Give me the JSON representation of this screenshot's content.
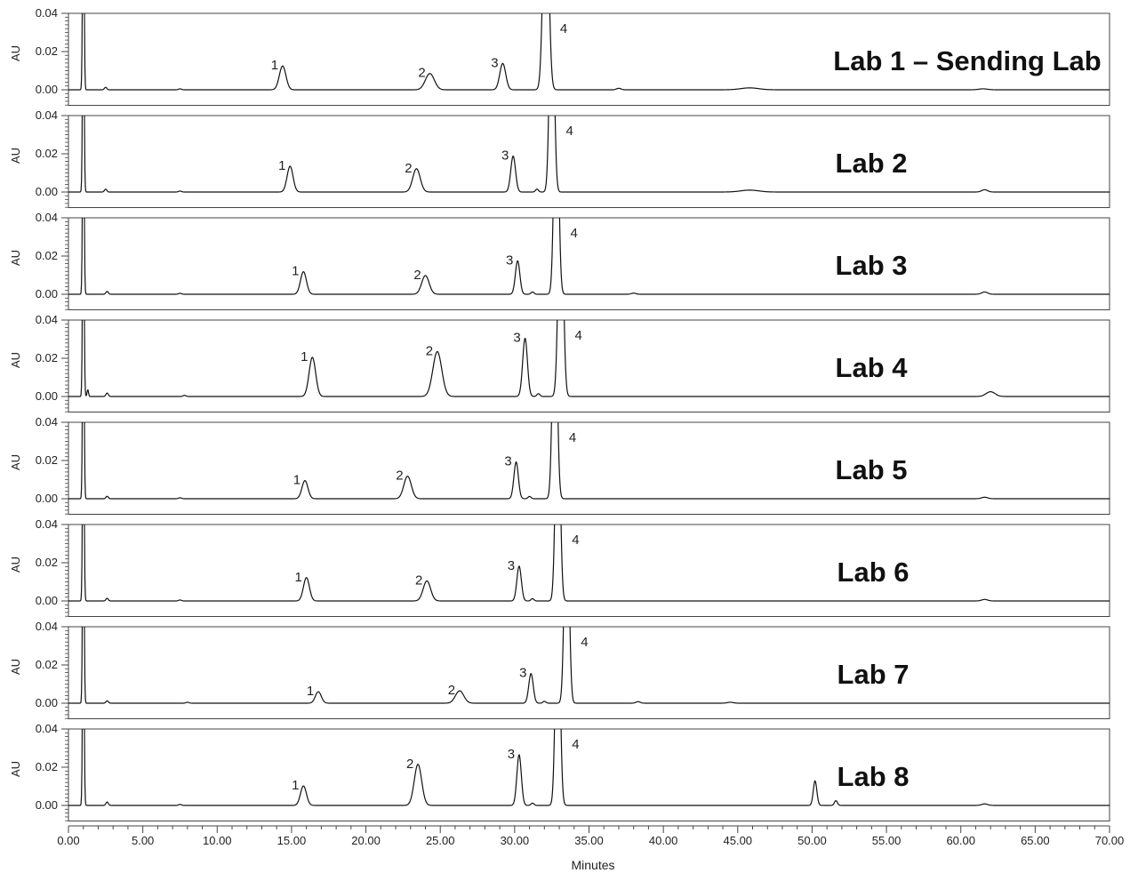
{
  "chart_data": {
    "type": "line",
    "xlabel": "Minutes",
    "ylabel": "AU",
    "xlim": [
      0,
      70
    ],
    "ylim": [
      -0.01,
      0.04
    ],
    "x_ticks": [
      "0.00",
      "5.00",
      "10.00",
      "15.00",
      "20.00",
      "25.00",
      "30.00",
      "35.00",
      "40.00",
      "45.00",
      "50.00",
      "55.00",
      "60.00",
      "65.00",
      "70.00"
    ],
    "y_ticks": [
      "0.00",
      "0.02",
      "0.04"
    ],
    "grid": false,
    "panels": [
      {
        "name": "Lab 1 – Sending Lab",
        "peaks": [
          {
            "label": "1",
            "x": 14.4,
            "y": 0.0125,
            "w": 0.22
          },
          {
            "label": "2",
            "x": 24.3,
            "y": 0.0085,
            "w": 0.3
          },
          {
            "label": "3",
            "x": 29.2,
            "y": 0.0138,
            "w": 0.2
          },
          {
            "label": "4",
            "x": 32.1,
            "y": 0.12,
            "w": 0.18
          }
        ],
        "minor": [
          {
            "x": 2.5,
            "y": 0.0013,
            "w": 0.08
          },
          {
            "x": 7.5,
            "y": 0.0005,
            "w": 0.1
          },
          {
            "x": 37.0,
            "y": 0.0008,
            "w": 0.15
          },
          {
            "x": 45.8,
            "y": 0.001,
            "w": 0.6
          },
          {
            "x": 61.5,
            "y": 0.0005,
            "w": 0.3
          }
        ]
      },
      {
        "name": "Lab 2",
        "peaks": [
          {
            "label": "1",
            "x": 14.9,
            "y": 0.0135,
            "w": 0.2
          },
          {
            "label": "2",
            "x": 23.4,
            "y": 0.0122,
            "w": 0.25
          },
          {
            "label": "3",
            "x": 29.9,
            "y": 0.0188,
            "w": 0.16
          },
          {
            "label": "4",
            "x": 32.5,
            "y": 0.12,
            "w": 0.15
          }
        ],
        "minor": [
          {
            "x": 2.5,
            "y": 0.0015,
            "w": 0.08
          },
          {
            "x": 7.5,
            "y": 0.0005,
            "w": 0.1
          },
          {
            "x": 31.5,
            "y": 0.0015,
            "w": 0.1
          },
          {
            "x": 45.8,
            "y": 0.001,
            "w": 0.6
          },
          {
            "x": 61.6,
            "y": 0.0012,
            "w": 0.2
          }
        ]
      },
      {
        "name": "Lab 3",
        "peaks": [
          {
            "label": "1",
            "x": 15.8,
            "y": 0.0118,
            "w": 0.2
          },
          {
            "label": "2",
            "x": 24.0,
            "y": 0.0098,
            "w": 0.25
          },
          {
            "label": "3",
            "x": 30.2,
            "y": 0.0175,
            "w": 0.15
          },
          {
            "label": "4",
            "x": 32.8,
            "y": 0.12,
            "w": 0.15
          }
        ],
        "minor": [
          {
            "x": 2.6,
            "y": 0.0015,
            "w": 0.08
          },
          {
            "x": 7.5,
            "y": 0.0005,
            "w": 0.1
          },
          {
            "x": 31.2,
            "y": 0.0012,
            "w": 0.1
          },
          {
            "x": 38.0,
            "y": 0.0006,
            "w": 0.15
          },
          {
            "x": 61.6,
            "y": 0.0012,
            "w": 0.2
          }
        ]
      },
      {
        "name": "Lab 4",
        "peaks": [
          {
            "label": "1",
            "x": 16.4,
            "y": 0.0205,
            "w": 0.22
          },
          {
            "label": "2",
            "x": 24.8,
            "y": 0.0235,
            "w": 0.3
          },
          {
            "label": "3",
            "x": 30.7,
            "y": 0.0305,
            "w": 0.16
          },
          {
            "label": "4",
            "x": 33.1,
            "y": 0.12,
            "w": 0.16
          }
        ],
        "minor": [
          {
            "x": 1.3,
            "y": 0.0035,
            "w": 0.05
          },
          {
            "x": 2.6,
            "y": 0.0018,
            "w": 0.08
          },
          {
            "x": 7.8,
            "y": 0.0006,
            "w": 0.1
          },
          {
            "x": 31.6,
            "y": 0.0015,
            "w": 0.1
          },
          {
            "x": 62.0,
            "y": 0.0025,
            "w": 0.3
          }
        ]
      },
      {
        "name": "Lab 5",
        "peaks": [
          {
            "label": "1",
            "x": 15.9,
            "y": 0.0095,
            "w": 0.2
          },
          {
            "label": "2",
            "x": 22.8,
            "y": 0.0118,
            "w": 0.25
          },
          {
            "label": "3",
            "x": 30.1,
            "y": 0.0192,
            "w": 0.15
          },
          {
            "label": "4",
            "x": 32.7,
            "y": 0.12,
            "w": 0.15
          }
        ],
        "minor": [
          {
            "x": 2.6,
            "y": 0.0013,
            "w": 0.08
          },
          {
            "x": 7.5,
            "y": 0.0005,
            "w": 0.1
          },
          {
            "x": 31.0,
            "y": 0.0012,
            "w": 0.1
          },
          {
            "x": 61.6,
            "y": 0.0008,
            "w": 0.2
          }
        ]
      },
      {
        "name": "Lab 6",
        "peaks": [
          {
            "label": "1",
            "x": 16.0,
            "y": 0.0122,
            "w": 0.2
          },
          {
            "label": "2",
            "x": 24.1,
            "y": 0.0105,
            "w": 0.25
          },
          {
            "label": "3",
            "x": 30.3,
            "y": 0.0182,
            "w": 0.15
          },
          {
            "label": "4",
            "x": 32.9,
            "y": 0.12,
            "w": 0.15
          }
        ],
        "minor": [
          {
            "x": 2.6,
            "y": 0.0014,
            "w": 0.08
          },
          {
            "x": 7.5,
            "y": 0.0005,
            "w": 0.1
          },
          {
            "x": 31.2,
            "y": 0.0012,
            "w": 0.1
          },
          {
            "x": 61.6,
            "y": 0.0008,
            "w": 0.2
          }
        ]
      },
      {
        "name": "Lab 7",
        "peaks": [
          {
            "label": "1",
            "x": 16.8,
            "y": 0.006,
            "w": 0.2
          },
          {
            "label": "2",
            "x": 26.3,
            "y": 0.0065,
            "w": 0.28
          },
          {
            "label": "3",
            "x": 31.1,
            "y": 0.0155,
            "w": 0.15
          },
          {
            "label": "4",
            "x": 33.5,
            "y": 0.12,
            "w": 0.15
          }
        ],
        "minor": [
          {
            "x": 2.6,
            "y": 0.0012,
            "w": 0.08
          },
          {
            "x": 8.0,
            "y": 0.0005,
            "w": 0.1
          },
          {
            "x": 32.0,
            "y": 0.001,
            "w": 0.1
          },
          {
            "x": 38.3,
            "y": 0.0008,
            "w": 0.15
          },
          {
            "x": 44.5,
            "y": 0.0005,
            "w": 0.2
          }
        ]
      },
      {
        "name": "Lab 8",
        "peaks": [
          {
            "label": "1",
            "x": 15.8,
            "y": 0.0102,
            "w": 0.2
          },
          {
            "label": "2",
            "x": 23.5,
            "y": 0.0215,
            "w": 0.25
          },
          {
            "label": "3",
            "x": 30.3,
            "y": 0.0265,
            "w": 0.15
          },
          {
            "label": "4",
            "x": 32.9,
            "y": 0.12,
            "w": 0.15
          }
        ],
        "minor": [
          {
            "x": 2.6,
            "y": 0.0018,
            "w": 0.08
          },
          {
            "x": 7.5,
            "y": 0.0005,
            "w": 0.1
          },
          {
            "x": 31.2,
            "y": 0.0012,
            "w": 0.1
          },
          {
            "x": 50.2,
            "y": 0.0128,
            "w": 0.12
          },
          {
            "x": 51.6,
            "y": 0.0025,
            "w": 0.1
          },
          {
            "x": 61.6,
            "y": 0.0008,
            "w": 0.2
          }
        ]
      }
    ]
  }
}
